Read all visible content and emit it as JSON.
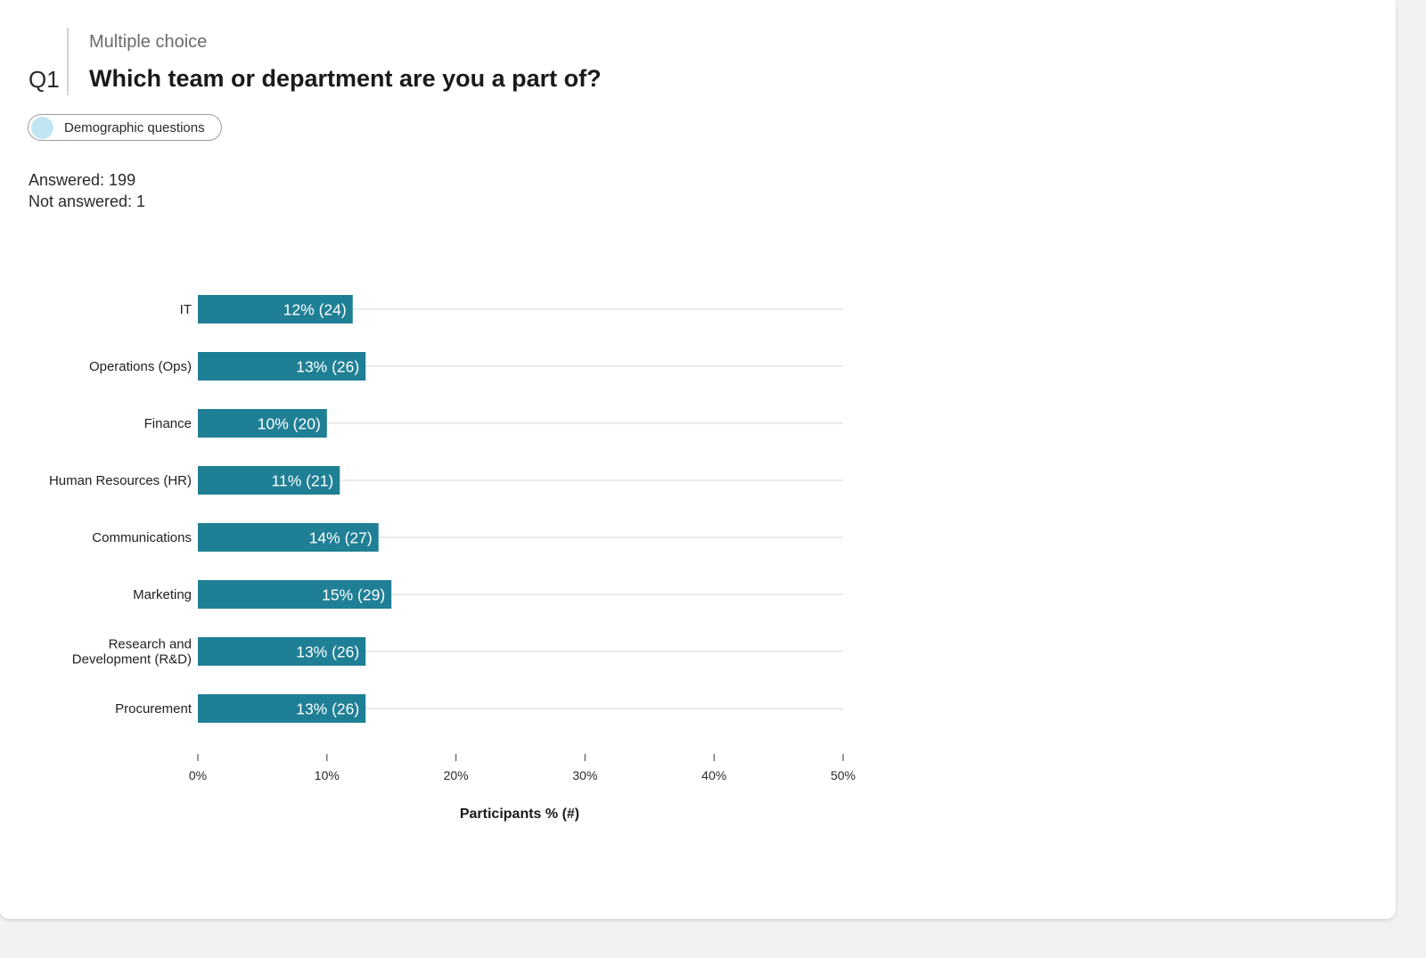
{
  "question": {
    "number": "Q1",
    "type": "Multiple choice",
    "title": "Which team or department are you a part of?",
    "tag": "Demographic questions"
  },
  "stats": {
    "answered": "Answered: 199",
    "not_answered": "Not answered: 1"
  },
  "colors": {
    "bar": "#1f7f95",
    "tag_dot": "#bfe6f2"
  },
  "chart_data": {
    "type": "bar",
    "orientation": "horizontal",
    "categories": [
      "IT",
      "Operations (Ops)",
      "Finance",
      "Human Resources (HR)",
      "Communications",
      "Marketing",
      "Research and Development (R&D)",
      "Procurement"
    ],
    "values": [
      12,
      13,
      10,
      11,
      14,
      15,
      13,
      13
    ],
    "counts": [
      24,
      26,
      20,
      21,
      27,
      29,
      26,
      26
    ],
    "data_labels": [
      "12% (24)",
      "13% (26)",
      "10% (20)",
      "11% (21)",
      "14% (27)",
      "15% (29)",
      "13% (26)",
      "13% (26)"
    ],
    "xlabel": "Participants % (#)",
    "ylabel": "",
    "xlim": [
      0,
      50
    ],
    "xticks": [
      "0%",
      "10%",
      "20%",
      "30%",
      "40%",
      "50%"
    ],
    "grid": true,
    "legend": "none"
  }
}
